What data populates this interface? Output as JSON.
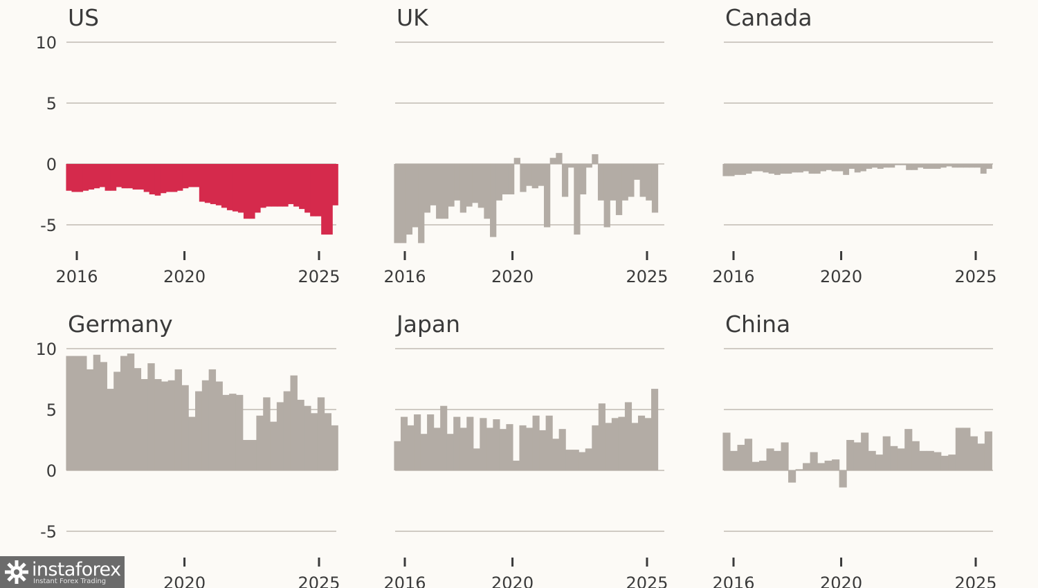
{
  "watermark": {
    "name": "instaforex",
    "tagline": "Instant Forex Trading",
    "icon": "gear-logo-icon"
  },
  "colors": {
    "us_bar": "#d52a4c",
    "bar": "#b3aca5",
    "grid": "#cfcac3",
    "text": "#3a3a3a",
    "background": "#fcfaf6"
  },
  "chart_data": [
    {
      "type": "bar",
      "title": "US",
      "color": "#d52a4c",
      "x_start": 2015.6,
      "x_end": 2025.7,
      "ylim": [
        -7,
        10
      ],
      "yticks": [
        "10",
        "5",
        "0",
        "-5"
      ],
      "yticks_values": [
        10,
        5,
        0,
        -5
      ],
      "xticks": [
        "2016",
        "2020",
        "2025"
      ],
      "xticks_values": [
        2016,
        2020,
        2025
      ],
      "values": [
        -2.2,
        -2.3,
        -2.3,
        -2.2,
        -2.1,
        -2.0,
        -1.9,
        -2.2,
        -2.2,
        -1.9,
        -2.0,
        -2.0,
        -2.1,
        -2.1,
        -2.3,
        -2.5,
        -2.6,
        -2.4,
        -2.3,
        -2.3,
        -2.2,
        -2.0,
        -1.9,
        -1.9,
        -3.1,
        -3.2,
        -3.3,
        -3.4,
        -3.6,
        -3.8,
        -3.9,
        -4.0,
        -4.5,
        -4.5,
        -4.0,
        -3.6,
        -3.5,
        -3.5,
        -3.5,
        -3.5,
        -3.3,
        -3.5,
        -3.7,
        -4.0,
        -4.3,
        -4.3,
        -5.8,
        -5.8,
        -3.4
      ]
    },
    {
      "type": "bar",
      "title": "UK",
      "color": "#b3aca5",
      "x_start": 2015.6,
      "x_end": 2025.4,
      "ylim": [
        -7,
        10
      ],
      "yticks_values": [
        10,
        5,
        0,
        -5
      ],
      "xticks": [
        "2016",
        "2020",
        "2025"
      ],
      "xticks_values": [
        2016,
        2020,
        2025
      ],
      "values": [
        -6.5,
        -6.5,
        -5.8,
        -5.2,
        -6.5,
        -4.0,
        -3.4,
        -4.5,
        -4.5,
        -3.5,
        -3.0,
        -4.0,
        -3.5,
        -3.2,
        -3.6,
        -4.5,
        -6.0,
        -3.0,
        -2.5,
        -2.5,
        0.5,
        -2.3,
        -1.8,
        -2.0,
        -1.8,
        -5.2,
        0.5,
        0.9,
        -2.7,
        -0.3,
        -5.8,
        -2.5,
        -0.3,
        0.8,
        -3.0,
        -5.2,
        -3.0,
        -4.2,
        -3.0,
        -2.7,
        -1.3,
        -2.7,
        -3.0,
        -4.0
      ]
    },
    {
      "type": "bar",
      "title": "Canada",
      "color": "#b3aca5",
      "x_start": 2015.6,
      "x_end": 2025.6,
      "ylim": [
        -7,
        10
      ],
      "yticks_values": [
        10,
        5,
        0,
        -5
      ],
      "xticks": [
        "2016",
        "2020",
        "2025"
      ],
      "xticks_values": [
        2016,
        2020,
        2025
      ],
      "values": [
        -1.0,
        -1.0,
        -0.9,
        -0.9,
        -0.8,
        -0.6,
        -0.6,
        -0.7,
        -0.8,
        -0.9,
        -0.8,
        -0.8,
        -0.7,
        -0.7,
        -0.6,
        -0.8,
        -0.8,
        -0.6,
        -0.5,
        -0.6,
        -0.6,
        -0.9,
        -0.4,
        -0.7,
        -0.6,
        -0.4,
        -0.3,
        -0.4,
        -0.3,
        -0.3,
        -0.1,
        -0.1,
        -0.5,
        -0.5,
        -0.3,
        -0.4,
        -0.4,
        -0.4,
        -0.3,
        -0.2,
        -0.3,
        -0.3,
        -0.3,
        -0.3,
        -0.3,
        -0.8,
        -0.4
      ]
    },
    {
      "type": "bar",
      "title": "Germany",
      "color": "#b3aca5",
      "x_start": 2015.6,
      "x_end": 2025.7,
      "ylim": [
        -7,
        10
      ],
      "yticks": [
        "10",
        "5",
        "0",
        "-5"
      ],
      "yticks_values": [
        10,
        5,
        0,
        -5
      ],
      "xticks": [
        "2020",
        "2025"
      ],
      "xticks_values": [
        2020,
        2025
      ],
      "values": [
        9.4,
        9.4,
        9.4,
        8.3,
        9.5,
        8.9,
        6.7,
        8.1,
        9.4,
        9.6,
        8.4,
        7.5,
        8.8,
        7.5,
        7.3,
        7.4,
        8.3,
        7.0,
        4.4,
        6.5,
        7.4,
        8.3,
        7.3,
        6.2,
        6.3,
        6.2,
        2.5,
        2.5,
        4.5,
        6.0,
        4.0,
        5.6,
        6.5,
        7.8,
        5.8,
        5.3,
        4.7,
        6.0,
        4.7,
        3.7
      ]
    },
    {
      "type": "bar",
      "title": "Japan",
      "color": "#b3aca5",
      "x_start": 2015.6,
      "x_end": 2025.4,
      "ylim": [
        -7,
        10
      ],
      "yticks_values": [
        10,
        5,
        0,
        -5
      ],
      "xticks": [
        "2016",
        "2020",
        "2025"
      ],
      "xticks_values": [
        2016,
        2020,
        2025
      ],
      "values": [
        2.4,
        4.4,
        3.7,
        4.6,
        3.0,
        4.6,
        3.5,
        5.3,
        3.0,
        4.4,
        3.5,
        4.4,
        1.8,
        4.3,
        3.5,
        4.2,
        3.4,
        3.8,
        0.8,
        3.7,
        3.5,
        4.5,
        3.3,
        4.5,
        2.6,
        3.4,
        1.7,
        1.7,
        1.5,
        1.8,
        3.7,
        5.5,
        3.9,
        4.3,
        4.4,
        5.6,
        3.9,
        4.5,
        4.3,
        6.7
      ]
    },
    {
      "type": "bar",
      "title": "China",
      "color": "#b3aca5",
      "x_start": 2015.6,
      "x_end": 2025.6,
      "ylim": [
        -7,
        10
      ],
      "yticks_values": [
        10,
        5,
        0,
        -5
      ],
      "xticks": [
        "2016",
        "2020",
        "2025"
      ],
      "xticks_values": [
        2016,
        2020,
        2025
      ],
      "values": [
        3.1,
        1.6,
        2.1,
        2.6,
        0.7,
        0.8,
        1.8,
        1.6,
        2.3,
        -1.0,
        0.1,
        0.6,
        1.5,
        0.6,
        0.8,
        0.9,
        -1.4,
        2.5,
        2.3,
        3.1,
        1.6,
        1.3,
        2.8,
        2.0,
        1.8,
        3.4,
        2.4,
        1.6,
        1.6,
        1.5,
        1.2,
        1.3,
        3.5,
        3.5,
        2.8,
        2.2,
        3.2
      ]
    }
  ]
}
